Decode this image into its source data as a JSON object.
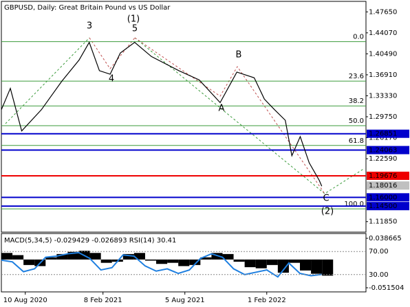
{
  "chart_data": {
    "type": "line",
    "title": "GBPUSD, Daily:  Great Britain Pound vs US Dollar",
    "x": [
      0,
      15,
      34,
      67,
      101,
      130,
      147,
      164,
      182,
      199,
      223,
      251,
      297,
      331,
      366,
      394,
      423,
      440,
      457,
      475,
      486,
      500,
      515,
      532,
      536
    ],
    "series": [
      {
        "name": "GBPUSD",
        "color": "#000000",
        "values": [
          1.3096,
          1.3459,
          1.2733,
          1.3096,
          1.358,
          1.3943,
          1.4245,
          1.3761,
          1.3701,
          1.4064,
          1.4245,
          1.4003,
          1.3761,
          1.3604,
          1.3217,
          1.3737,
          1.364,
          1.3277,
          1.3096,
          1.2915,
          1.231,
          1.2636,
          1.2189,
          1.1887,
          1.179
        ]
      }
    ],
    "xlim": [
      0,
      610
    ],
    "ylim": [
      1.1006,
      1.4944
    ],
    "xticks": [
      {
        "value": 40,
        "label": "10 Aug 2020"
      },
      {
        "value": 170,
        "label": "8 Feb 2021"
      },
      {
        "value": 307,
        "label": "5 Aug 2021"
      },
      {
        "value": 444,
        "label": "1 Feb 2022"
      }
    ],
    "yticks": [
      {
        "value": 1.4765,
        "label": "1.47650"
      },
      {
        "value": 1.4407,
        "label": "1.44070"
      },
      {
        "value": 1.4049,
        "label": "1.40490"
      },
      {
        "value": 1.3691,
        "label": "1.36910"
      },
      {
        "value": 1.3333,
        "label": "1.33330"
      },
      {
        "value": 1.2975,
        "label": "1.29750"
      },
      {
        "value": 1.2617,
        "label": "1.26170"
      },
      {
        "value": 1.2259,
        "label": "1.22590"
      },
      {
        "value": 1.1185,
        "label": "1.11850"
      }
    ],
    "fib_levels": [
      {
        "value": 1.4257,
        "label": "0.0"
      },
      {
        "value": 1.3583,
        "label": "23.6"
      },
      {
        "value": 1.316,
        "label": "38.2"
      },
      {
        "value": 1.2822,
        "label": "50.0"
      },
      {
        "value": 1.2485,
        "label": "61.8"
      },
      {
        "value": 1.1403,
        "label": "100.0"
      }
    ],
    "levels": [
      {
        "value": 1.26851,
        "color": "#0000cc"
      },
      {
        "value": 1.24063,
        "color": "#0000cc"
      },
      {
        "value": 1.19676,
        "color": "#ee0000"
      },
      {
        "value": 1.18016,
        "label": "1.18016",
        "color": "#c0c0c0"
      },
      {
        "value": 1.16,
        "label": "1.16000",
        "color": "#0000cc"
      },
      {
        "value": 1.145,
        "label": "1.14500",
        "color": "#0000cc"
      }
    ],
    "annotations": [
      "3",
      "(1)",
      "5",
      "4",
      "B",
      "A",
      "C",
      "(2)"
    ],
    "indicator": {
      "label": "MACD(5,34,5) -0.029429 -0.026893 RSI(14) 30.41",
      "x": [
        0,
        18.5,
        37,
        55.5,
        74,
        92.5,
        111,
        129.5,
        148,
        166.5,
        185,
        203.5,
        222,
        240.5,
        259,
        277.5,
        296,
        314.5,
        333,
        351.5,
        370,
        388.5,
        407,
        425.5,
        444,
        462.5,
        481,
        499.5,
        518,
        536.5
      ],
      "macd": [
        0.012,
        0.008,
        -0.01,
        -0.012,
        0.004,
        0.01,
        0.014,
        0.016,
        0.012,
        -0.006,
        -0.004,
        0.01,
        0.012,
        -0.002,
        -0.008,
        -0.006,
        -0.012,
        -0.01,
        0.004,
        0.012,
        0.01,
        -0.004,
        -0.014,
        -0.016,
        -0.01,
        -0.024,
        -0.006,
        -0.02,
        -0.026,
        -0.029429
      ],
      "rsi": [
        55,
        52,
        35,
        40,
        60,
        62,
        66,
        68,
        58,
        38,
        42,
        64,
        62,
        45,
        36,
        40,
        32,
        38,
        58,
        66,
        60,
        40,
        30,
        34,
        38,
        26,
        50,
        32,
        28,
        30.41
      ],
      "macd_lim": [
        -0.051504,
        0.038665
      ],
      "macd_ticks": [
        0.038665,
        -0.051504
      ],
      "rsi_lim": [
        0,
        100
      ],
      "rsi_ticks": [
        {
          "value": 70,
          "label": "70.00"
        },
        {
          "value": 30,
          "label": "30.00"
        }
      ]
    }
  }
}
